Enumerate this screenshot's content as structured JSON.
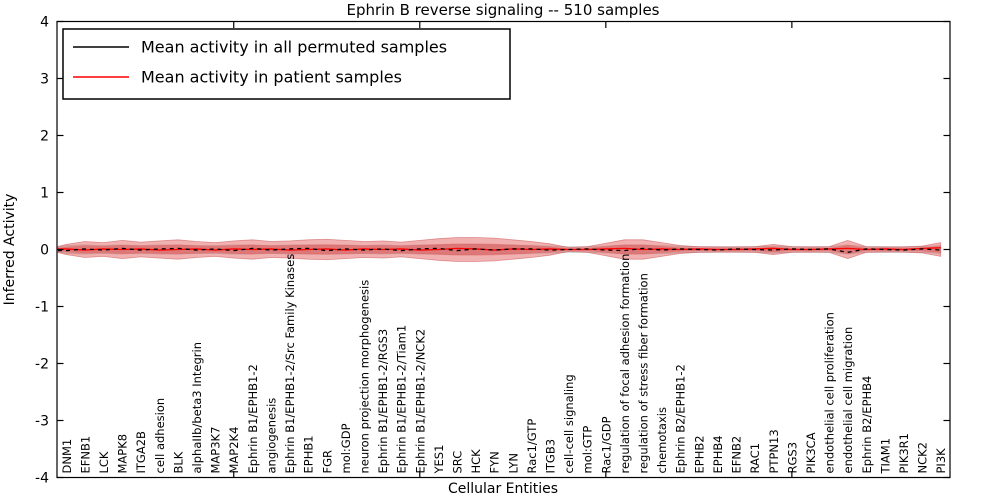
{
  "chart_data": {
    "type": "area",
    "title": "Ephrin B reverse signaling -- 510 samples",
    "xlabel": "Cellular Entities",
    "ylabel": "Inferred Activity",
    "ylim": [
      -4,
      4
    ],
    "yticks": [
      "4",
      "3",
      "2",
      "1",
      "0",
      "-1",
      "-2",
      "-3",
      "-4"
    ],
    "ytick_values": [
      4,
      3,
      2,
      1,
      0,
      -1,
      -2,
      -3,
      -4
    ],
    "xtick_marks_at_entity_index": [
      9,
      19,
      29,
      39
    ],
    "grid": false,
    "legend_position": "upper left",
    "colors": {
      "permuted_line": "#000000",
      "patient_line": "#ff0000",
      "band_fill": "#dd4444",
      "gray_band_fill": "#999999",
      "axis": "#000000"
    },
    "entities": [
      "DNM1",
      "EFNB1",
      "LCK",
      "MAPK8",
      "ITGA2B",
      "cell adhesion",
      "BLK",
      "alphaIIb/beta3 Integrin",
      "MAP3K7",
      "MAP2K4",
      "Ephrin B1/EPHB1-2",
      "angiogenesis",
      "Ephrin B1/EPHB1-2/Src Family Kinases",
      "EPHB1",
      "FGR",
      "mol:GDP",
      "neuron projection morphogenesis",
      "Ephrin B1/EPHB1-2/RGS3",
      "Ephrin B1/EPHB1-2/Tiam1",
      "Ephrin B1/EPHB1-2/NCK2",
      "YES1",
      "SRC",
      "HCK",
      "FYN",
      "LYN",
      "Rac1/GTP",
      "ITGB3",
      "cell-cell signaling",
      "mol:GTP",
      "Rac1/GDP",
      "regulation of focal adhesion formation",
      "regulation of stress fiber formation",
      "chemotaxis",
      "Ephrin B2/EPHB1-2",
      "EPHB2",
      "EPHB4",
      "EFNB2",
      "RAC1",
      "PTPN13",
      "RGS3",
      "PIK3CA",
      "endothelial cell proliferation",
      "endothelial cell migration",
      "Ephrin B2/EPHB4",
      "TIAM1",
      "PIK3R1",
      "NCK2",
      "PI3K"
    ],
    "series": [
      {
        "name": "Mean activity in all permuted samples",
        "color": "#000000",
        "style": "solid",
        "values": [
          -0.02,
          0.01,
          -0.01,
          0.02,
          -0.01,
          0.01,
          0.02,
          -0.01,
          0.01,
          -0.02,
          0.02,
          -0.01,
          0.01,
          0.02,
          -0.02,
          0.01,
          -0.01,
          0.01,
          -0.02,
          0.01,
          0.02,
          -0.02,
          0.01,
          -0.01,
          0.01,
          0.01,
          -0.01,
          0.0,
          0.01,
          -0.01,
          -0.02,
          0.02,
          -0.01,
          0.01,
          0.0,
          -0.01,
          0.01,
          0.0,
          -0.01,
          0.01,
          0.0,
          0.01,
          -0.05,
          0.01,
          0.0,
          -0.01,
          0.01,
          -0.01
        ]
      },
      {
        "name": "Mean activity in patient samples",
        "color": "#ff0000",
        "style": "dashed-over-solid",
        "values": [
          0.01,
          -0.01,
          0.01,
          0.0,
          0.01,
          -0.01,
          0.0,
          0.01,
          -0.01,
          0.01,
          0.0,
          0.01,
          -0.01,
          0.0,
          0.01,
          -0.01,
          0.01,
          0.0,
          0.01,
          -0.01,
          0.0,
          0.02,
          0.01,
          -0.01,
          0.01,
          0.0,
          0.01,
          0.0,
          0.0,
          0.01,
          0.02,
          0.0,
          0.01,
          0.0,
          0.01,
          0.0,
          0.0,
          0.01,
          0.02,
          0.0,
          0.0,
          0.01,
          0.02,
          0.0,
          0.01,
          0.0,
          0.02,
          0.03
        ]
      }
    ],
    "patient_band_halfwidth": [
      0.09,
      0.14,
      0.12,
      0.16,
      0.13,
      0.15,
      0.17,
      0.14,
      0.12,
      0.15,
      0.17,
      0.14,
      0.15,
      0.17,
      0.18,
      0.16,
      0.14,
      0.15,
      0.13,
      0.16,
      0.19,
      0.21,
      0.21,
      0.2,
      0.17,
      0.14,
      0.1,
      0.035,
      0.05,
      0.11,
      0.17,
      0.17,
      0.12,
      0.07,
      0.05,
      0.045,
      0.045,
      0.05,
      0.09,
      0.05,
      0.045,
      0.05,
      0.16,
      0.05,
      0.045,
      0.045,
      0.06,
      0.12
    ],
    "inner_band_ratio": 0.5,
    "permuted_band_halfwidth": [
      0.07,
      0.08,
      0.07,
      0.08,
      0.07,
      0.08,
      0.08,
      0.07,
      0.07,
      0.08,
      0.08,
      0.07,
      0.08,
      0.08,
      0.08,
      0.08,
      0.07,
      0.08,
      0.07,
      0.08,
      0.08,
      0.09,
      0.09,
      0.08,
      0.08,
      0.07,
      0.06,
      0.05,
      0.05,
      0.06,
      0.08,
      0.08,
      0.07,
      0.06,
      0.05,
      0.05,
      0.05,
      0.05,
      0.06,
      0.05,
      0.05,
      0.05,
      0.08,
      0.05,
      0.05,
      0.05,
      0.05,
      0.07
    ]
  },
  "legend": {
    "entries": [
      {
        "label": "Mean activity in all permuted samples",
        "color": "#000000"
      },
      {
        "label": "Mean activity in patient samples",
        "color": "#ff0000"
      }
    ]
  }
}
